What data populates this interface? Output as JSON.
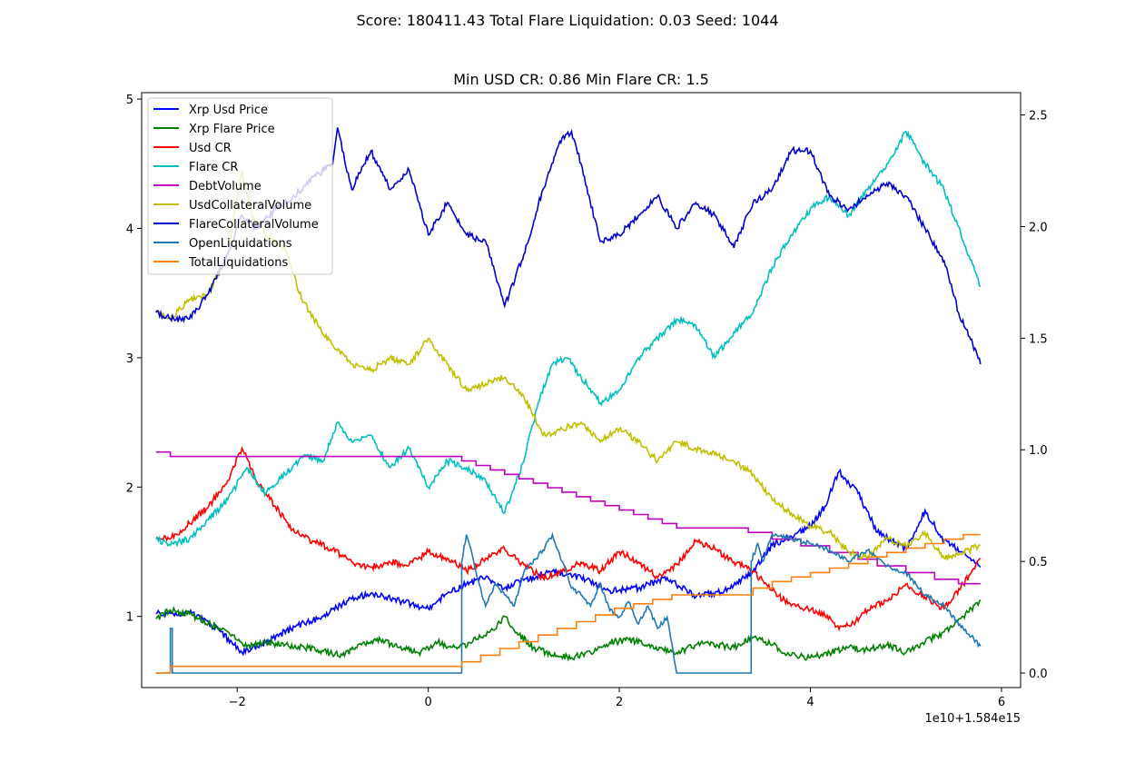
{
  "figure": {
    "suptitle": "Score: 180411.43 Total Flare Liquidation: 0.03 Seed: 1044",
    "axes_title": "Min USD CR: 0.86 Min Flare CR: 1.5",
    "x_offset_text": "1e10+1.584e15"
  },
  "chart_data": {
    "type": "line",
    "title": "Min USD CR: 0.86 Min Flare CR: 1.5",
    "xlabel": "",
    "ylabel": "",
    "xlim": [
      -3.0,
      6.2
    ],
    "ylim_left": [
      0.45,
      5.05
    ],
    "ylim_right": [
      -0.065,
      2.6
    ],
    "x_ticks": [
      -2,
      0,
      2,
      4,
      6
    ],
    "x_tick_labels": [
      "−2",
      "0",
      "2",
      "4",
      "6"
    ],
    "y_left_ticks": [
      1,
      2,
      3,
      4,
      5
    ],
    "y_right_ticks": [
      0.0,
      0.5,
      1.0,
      1.5,
      2.0,
      2.5
    ],
    "y_right_tick_labels": [
      "0.0",
      "0.5",
      "1.0",
      "1.5",
      "2.0",
      "2.5"
    ],
    "x_offset_text": "1e10+1.584e15",
    "legend_position": "upper-left",
    "grid": false,
    "series": [
      {
        "name": "Xrp Usd Price",
        "color": "#0000ff",
        "axis": "left",
        "x": [
          -2.85,
          -2.5,
          -2.2,
          -1.95,
          -1.7,
          -1.4,
          -1.1,
          -0.85,
          -0.6,
          -0.3,
          0.0,
          0.2,
          0.4,
          0.6,
          0.8,
          1.0,
          1.3,
          1.6,
          1.9,
          2.2,
          2.5,
          2.8,
          3.1,
          3.4,
          3.6,
          3.8,
          4.0,
          4.15,
          4.3,
          4.5,
          4.7,
          5.0,
          5.2,
          5.4,
          5.6,
          5.78
        ],
        "y": [
          1.02,
          1.03,
          0.9,
          0.72,
          0.8,
          0.92,
          1.0,
          1.12,
          1.18,
          1.12,
          1.06,
          1.18,
          1.25,
          1.3,
          1.22,
          1.28,
          1.35,
          1.3,
          1.2,
          1.22,
          1.3,
          1.15,
          1.2,
          1.35,
          1.55,
          1.62,
          1.7,
          1.85,
          2.12,
          1.95,
          1.65,
          1.52,
          1.82,
          1.58,
          1.5,
          1.38
        ]
      },
      {
        "name": "Xrp Flare Price",
        "color": "#008000",
        "axis": "left",
        "x": [
          -2.85,
          -2.7,
          -2.5,
          -2.3,
          -2.1,
          -1.9,
          -1.7,
          -1.5,
          -1.3,
          -1.1,
          -0.9,
          -0.7,
          -0.5,
          -0.3,
          -0.1,
          0.1,
          0.3,
          0.5,
          0.7,
          0.8,
          0.95,
          1.1,
          1.3,
          1.5,
          1.7,
          1.9,
          2.1,
          2.3,
          2.6,
          2.9,
          3.2,
          3.4,
          3.6,
          3.8,
          4.0,
          4.2,
          4.4,
          4.6,
          4.8,
          5.0,
          5.2,
          5.4,
          5.6,
          5.78
        ],
        "y": [
          0.98,
          1.05,
          1.02,
          0.95,
          0.88,
          0.76,
          0.8,
          0.78,
          0.76,
          0.73,
          0.7,
          0.78,
          0.82,
          0.76,
          0.72,
          0.8,
          0.75,
          0.82,
          0.9,
          1.0,
          0.86,
          0.76,
          0.7,
          0.68,
          0.72,
          0.8,
          0.82,
          0.78,
          0.72,
          0.8,
          0.76,
          0.84,
          0.78,
          0.7,
          0.68,
          0.72,
          0.76,
          0.74,
          0.78,
          0.72,
          0.8,
          0.88,
          1.0,
          1.13
        ]
      },
      {
        "name": "Usd CR",
        "color": "#ff0000",
        "axis": "left",
        "x": [
          -2.85,
          -2.7,
          -2.5,
          -2.3,
          -2.1,
          -1.95,
          -1.8,
          -1.6,
          -1.4,
          -1.2,
          -1.0,
          -0.8,
          -0.6,
          -0.4,
          -0.2,
          0.0,
          0.2,
          0.4,
          0.6,
          0.8,
          1.0,
          1.2,
          1.4,
          1.6,
          1.8,
          2.0,
          2.2,
          2.4,
          2.6,
          2.8,
          3.0,
          3.2,
          3.4,
          3.6,
          3.8,
          4.0,
          4.2,
          4.3,
          4.45,
          4.6,
          4.8,
          5.0,
          5.2,
          5.4,
          5.6,
          5.78
        ],
        "y": [
          1.6,
          1.6,
          1.72,
          1.85,
          2.05,
          2.3,
          2.05,
          1.85,
          1.65,
          1.58,
          1.52,
          1.42,
          1.38,
          1.42,
          1.4,
          1.5,
          1.45,
          1.35,
          1.45,
          1.52,
          1.4,
          1.3,
          1.35,
          1.42,
          1.35,
          1.5,
          1.42,
          1.3,
          1.4,
          1.58,
          1.52,
          1.42,
          1.35,
          1.2,
          1.08,
          1.05,
          1.0,
          0.9,
          0.95,
          1.05,
          1.12,
          1.25,
          1.15,
          1.06,
          1.25,
          1.45
        ]
      },
      {
        "name": "Flare CR",
        "color": "#00bfbf",
        "axis": "left",
        "x": [
          -2.85,
          -2.7,
          -2.5,
          -2.3,
          -2.1,
          -1.9,
          -1.7,
          -1.5,
          -1.3,
          -1.1,
          -0.95,
          -0.8,
          -0.6,
          -0.4,
          -0.2,
          0.0,
          0.2,
          0.4,
          0.6,
          0.8,
          1.0,
          1.15,
          1.3,
          1.45,
          1.6,
          1.8,
          2.0,
          2.2,
          2.4,
          2.6,
          2.8,
          3.0,
          3.2,
          3.4,
          3.6,
          3.8,
          4.0,
          4.2,
          4.4,
          4.6,
          4.8,
          5.0,
          5.2,
          5.4,
          5.6,
          5.78
        ],
        "y": [
          1.6,
          1.55,
          1.6,
          1.75,
          1.9,
          2.15,
          1.95,
          2.1,
          2.25,
          2.2,
          2.5,
          2.35,
          2.4,
          2.15,
          2.3,
          2.0,
          2.2,
          2.15,
          2.05,
          1.8,
          2.2,
          2.65,
          2.95,
          3.0,
          2.85,
          2.65,
          2.75,
          3.0,
          3.15,
          3.3,
          3.25,
          3.0,
          3.2,
          3.35,
          3.7,
          3.95,
          4.15,
          4.25,
          4.1,
          4.3,
          4.5,
          4.75,
          4.5,
          4.3,
          3.9,
          3.55
        ]
      },
      {
        "name": "DebtVolume",
        "color": "#bf00bf",
        "axis": "right",
        "x": [
          -2.85,
          -2.7,
          -2.7,
          0.35,
          0.35,
          0.5,
          0.5,
          0.65,
          0.65,
          0.8,
          0.8,
          0.95,
          0.95,
          1.1,
          1.1,
          1.25,
          1.25,
          1.4,
          1.4,
          1.55,
          1.55,
          1.7,
          1.7,
          1.85,
          1.85,
          2.0,
          2.0,
          2.15,
          2.15,
          2.3,
          2.3,
          2.45,
          2.45,
          2.6,
          2.6,
          3.35,
          3.35,
          3.6,
          3.6,
          3.9,
          3.9,
          4.2,
          4.2,
          4.5,
          4.5,
          4.7,
          4.7,
          5.0,
          5.0,
          5.3,
          5.3,
          5.55,
          5.55,
          5.78
        ],
        "y": [
          0.99,
          0.99,
          0.97,
          0.97,
          0.95,
          0.95,
          0.93,
          0.93,
          0.91,
          0.91,
          0.89,
          0.89,
          0.87,
          0.87,
          0.85,
          0.85,
          0.83,
          0.83,
          0.81,
          0.81,
          0.79,
          0.79,
          0.77,
          0.77,
          0.75,
          0.75,
          0.73,
          0.73,
          0.71,
          0.71,
          0.69,
          0.69,
          0.67,
          0.67,
          0.65,
          0.65,
          0.63,
          0.63,
          0.6,
          0.6,
          0.57,
          0.57,
          0.54,
          0.54,
          0.51,
          0.51,
          0.48,
          0.48,
          0.45,
          0.45,
          0.42,
          0.42,
          0.4,
          0.4
        ]
      },
      {
        "name": "UsdCollateralVolume",
        "color": "#bfbf00",
        "axis": "left",
        "x": [
          -2.85,
          -2.7,
          -2.5,
          -2.3,
          -2.1,
          -1.95,
          -1.85,
          -1.7,
          -1.5,
          -1.35,
          -1.2,
          -1.0,
          -0.8,
          -0.6,
          -0.4,
          -0.2,
          0.0,
          0.2,
          0.4,
          0.6,
          0.8,
          1.0,
          1.2,
          1.4,
          1.6,
          1.8,
          2.0,
          2.2,
          2.4,
          2.6,
          2.8,
          3.0,
          3.2,
          3.4,
          3.6,
          3.8,
          4.0,
          4.2,
          4.4,
          4.6,
          4.8,
          5.0,
          5.2,
          5.4,
          5.6,
          5.78
        ],
        "y": [
          3.35,
          3.3,
          3.45,
          3.5,
          3.8,
          4.45,
          4.1,
          3.95,
          3.85,
          3.5,
          3.3,
          3.1,
          2.95,
          2.9,
          3.0,
          2.95,
          3.15,
          2.95,
          2.75,
          2.8,
          2.85,
          2.7,
          2.4,
          2.45,
          2.5,
          2.35,
          2.45,
          2.35,
          2.2,
          2.35,
          2.3,
          2.25,
          2.2,
          2.1,
          1.9,
          1.8,
          1.7,
          1.65,
          1.5,
          1.45,
          1.6,
          1.55,
          1.65,
          1.45,
          1.5,
          1.55
        ]
      },
      {
        "name": "FlareCollateralVolume",
        "color": "#0000cc",
        "axis": "left",
        "x": [
          -2.85,
          -2.7,
          -2.5,
          -2.3,
          -2.1,
          -1.95,
          -1.8,
          -1.6,
          -1.4,
          -1.2,
          -1.0,
          -0.95,
          -0.8,
          -0.6,
          -0.4,
          -0.2,
          0.0,
          0.2,
          0.4,
          0.6,
          0.8,
          1.0,
          1.2,
          1.4,
          1.5,
          1.6,
          1.8,
          2.0,
          2.2,
          2.4,
          2.6,
          2.8,
          3.0,
          3.2,
          3.4,
          3.6,
          3.8,
          4.0,
          4.2,
          4.4,
          4.6,
          4.8,
          5.0,
          5.2,
          5.4,
          5.55,
          5.7,
          5.78
        ],
        "y": [
          3.35,
          3.3,
          3.3,
          3.5,
          3.8,
          4.1,
          4.0,
          4.15,
          4.25,
          4.4,
          4.5,
          4.78,
          4.3,
          4.6,
          4.3,
          4.45,
          3.95,
          4.2,
          3.95,
          3.9,
          3.4,
          3.8,
          4.3,
          4.7,
          4.75,
          4.5,
          3.9,
          3.95,
          4.1,
          4.25,
          4.0,
          4.2,
          4.1,
          3.85,
          4.2,
          4.3,
          4.6,
          4.6,
          4.25,
          4.15,
          4.25,
          4.35,
          4.25,
          4.0,
          3.75,
          3.35,
          3.1,
          2.95
        ]
      },
      {
        "name": "OpenLiquidations",
        "color": "#1f77b4",
        "axis": "right",
        "x": [
          -2.85,
          -2.7,
          -2.7,
          -2.68,
          -2.68,
          0.35,
          0.35,
          0.4,
          0.45,
          0.5,
          0.6,
          0.7,
          0.8,
          0.9,
          1.0,
          1.2,
          1.3,
          1.4,
          1.5,
          1.6,
          1.7,
          1.8,
          1.9,
          2.0,
          2.1,
          2.2,
          2.3,
          2.4,
          2.5,
          2.6,
          2.6,
          3.38,
          3.38,
          3.45,
          3.5,
          3.6,
          3.8,
          4.0,
          4.2,
          4.4,
          4.6,
          4.8,
          5.0,
          5.2,
          5.4,
          5.6,
          5.78
        ],
        "y": [
          0.0,
          0.0,
          0.2,
          0.2,
          0.0,
          0.0,
          0.5,
          0.62,
          0.55,
          0.45,
          0.3,
          0.4,
          0.35,
          0.3,
          0.45,
          0.55,
          0.62,
          0.5,
          0.38,
          0.35,
          0.3,
          0.4,
          0.28,
          0.25,
          0.32,
          0.22,
          0.3,
          0.2,
          0.25,
          0.0,
          0.0,
          0.0,
          0.5,
          0.58,
          0.5,
          0.62,
          0.6,
          0.58,
          0.55,
          0.5,
          0.55,
          0.48,
          0.45,
          0.35,
          0.3,
          0.2,
          0.12
        ]
      },
      {
        "name": "TotalLiquidations",
        "color": "#ff7f0e",
        "axis": "right",
        "x": [
          -2.85,
          -2.7,
          -2.7,
          0.35,
          0.35,
          0.55,
          0.55,
          0.75,
          0.75,
          0.95,
          0.95,
          1.15,
          1.15,
          1.35,
          1.35,
          1.55,
          1.55,
          1.75,
          1.75,
          1.95,
          1.95,
          2.15,
          2.15,
          2.35,
          2.35,
          2.55,
          2.55,
          3.4,
          3.4,
          3.6,
          3.6,
          3.8,
          3.8,
          4.0,
          4.0,
          4.2,
          4.2,
          4.4,
          4.4,
          4.6,
          4.6,
          4.8,
          4.8,
          5.0,
          5.0,
          5.2,
          5.2,
          5.4,
          5.4,
          5.6,
          5.6,
          5.78
        ],
        "y": [
          0.0,
          0.0,
          0.03,
          0.03,
          0.05,
          0.05,
          0.08,
          0.08,
          0.11,
          0.11,
          0.14,
          0.14,
          0.17,
          0.17,
          0.2,
          0.2,
          0.23,
          0.23,
          0.26,
          0.26,
          0.29,
          0.29,
          0.31,
          0.31,
          0.33,
          0.33,
          0.35,
          0.35,
          0.38,
          0.38,
          0.41,
          0.41,
          0.43,
          0.43,
          0.45,
          0.45,
          0.47,
          0.47,
          0.49,
          0.49,
          0.52,
          0.52,
          0.54,
          0.54,
          0.56,
          0.56,
          0.58,
          0.58,
          0.6,
          0.6,
          0.62,
          0.62
        ]
      }
    ]
  }
}
